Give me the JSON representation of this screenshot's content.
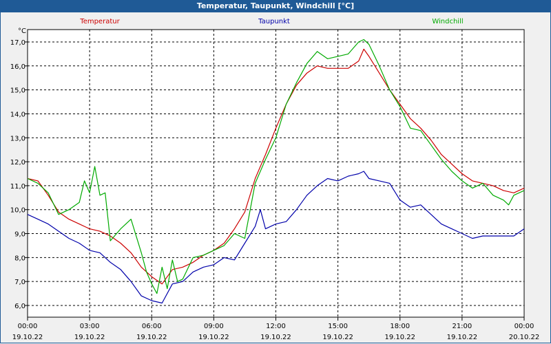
{
  "window": {
    "title": "Temperatur, Taupunkt, Windchill [°C]"
  },
  "chart_data": {
    "type": "line",
    "title": "Temperatur, Taupunkt, Windchill [°C]",
    "ylabel": "°C",
    "ylim": [
      5.5,
      17.5
    ],
    "xlim": [
      0,
      24
    ],
    "yticks": [
      6,
      7,
      8,
      9,
      10,
      11,
      12,
      13,
      14,
      15,
      16,
      17
    ],
    "ytick_labels": [
      "6,0",
      "7,0",
      "8,0",
      "9,0",
      "10,0",
      "11,0",
      "12,0",
      "13,0",
      "14,0",
      "15,0",
      "16,0",
      "17,0"
    ],
    "xticks": [
      0,
      3,
      6,
      9,
      12,
      15,
      18,
      21,
      24
    ],
    "xtick_labels": [
      {
        "time": "00:00",
        "date": "19.10.22"
      },
      {
        "time": "03:00",
        "date": "19.10.22"
      },
      {
        "time": "06:00",
        "date": "19.10.22"
      },
      {
        "time": "09:00",
        "date": "19.10.22"
      },
      {
        "time": "12:00",
        "date": "19.10.22"
      },
      {
        "time": "15:00",
        "date": "19.10.22"
      },
      {
        "time": "18:00",
        "date": "19.10.22"
      },
      {
        "time": "21:00",
        "date": "19.10.22"
      },
      {
        "time": "00:00",
        "date": "20.10.22"
      }
    ],
    "grid": true,
    "series": [
      {
        "name": "Temperatur",
        "color": "#cc0000",
        "x": [
          0,
          0.5,
          1,
          1.5,
          2,
          2.5,
          3,
          3.5,
          4,
          4.5,
          5,
          5.5,
          6,
          6.5,
          7,
          7.5,
          8,
          8.5,
          9,
          9.5,
          10,
          10.5,
          11,
          11.5,
          12,
          12.5,
          13,
          13.5,
          14,
          14.5,
          15,
          15.5,
          16,
          16.25,
          16.5,
          17,
          17.5,
          18,
          18.5,
          19,
          19.5,
          20,
          20.5,
          21,
          21.5,
          22,
          22.5,
          23,
          23.5,
          24
        ],
        "values": [
          11.3,
          11.2,
          10.6,
          9.9,
          9.6,
          9.4,
          9.2,
          9.1,
          8.9,
          8.6,
          8.2,
          7.6,
          7.2,
          6.9,
          7.5,
          7.6,
          7.8,
          8.1,
          8.3,
          8.6,
          9.2,
          9.9,
          11.3,
          12.3,
          13.4,
          14.4,
          15.2,
          15.7,
          16.0,
          15.9,
          15.9,
          15.9,
          16.2,
          16.7,
          16.4,
          15.7,
          15.0,
          14.4,
          13.8,
          13.4,
          12.9,
          12.3,
          11.9,
          11.5,
          11.2,
          11.1,
          11.0,
          10.8,
          10.7,
          10.9
        ]
      },
      {
        "name": "Taupunkt",
        "color": "#0000aa",
        "x": [
          0,
          0.5,
          1,
          1.5,
          2,
          2.5,
          3,
          3.5,
          4,
          4.5,
          5,
          5.5,
          6,
          6.5,
          7,
          7.5,
          8,
          8.5,
          9,
          9.5,
          10,
          10.5,
          11,
          11.25,
          11.5,
          12,
          12.5,
          13,
          13.5,
          14,
          14.5,
          15,
          15.5,
          16,
          16.25,
          16.5,
          17,
          17.5,
          18,
          18.5,
          19,
          19.5,
          20,
          20.5,
          21,
          21.5,
          22,
          22.5,
          23,
          23.5,
          24
        ],
        "values": [
          9.8,
          9.6,
          9.4,
          9.1,
          8.8,
          8.6,
          8.3,
          8.2,
          7.8,
          7.5,
          7.0,
          6.4,
          6.2,
          6.1,
          6.9,
          7.0,
          7.4,
          7.6,
          7.7,
          8.0,
          7.9,
          8.6,
          9.3,
          10.0,
          9.2,
          9.4,
          9.5,
          10.0,
          10.6,
          11.0,
          11.3,
          11.2,
          11.4,
          11.5,
          11.6,
          11.3,
          11.2,
          11.1,
          10.4,
          10.1,
          10.2,
          9.8,
          9.4,
          9.2,
          9.0,
          8.8,
          8.9,
          8.9,
          8.9,
          8.9,
          9.2
        ]
      },
      {
        "name": "Windchill",
        "color": "#00aa00",
        "x": [
          0,
          0.5,
          1,
          1.5,
          2,
          2.5,
          2.75,
          3,
          3.25,
          3.5,
          3.75,
          4,
          4.5,
          5,
          5.5,
          5.75,
          6,
          6.25,
          6.5,
          6.75,
          7,
          7.25,
          7.5,
          8,
          8.5,
          9,
          9.5,
          10,
          10.5,
          11,
          11.5,
          12,
          12.5,
          13,
          13.5,
          14,
          14.5,
          15,
          15.5,
          16,
          16.25,
          16.5,
          17,
          17.5,
          18,
          18.5,
          19,
          19.5,
          20,
          20.5,
          21,
          21.5,
          22,
          22.5,
          23,
          23.25,
          23.5,
          24
        ],
        "values": [
          11.3,
          11.1,
          10.7,
          9.8,
          10.0,
          10.3,
          11.2,
          10.7,
          11.8,
          10.6,
          10.7,
          8.7,
          9.2,
          9.6,
          8.2,
          7.4,
          6.9,
          6.5,
          7.6,
          6.7,
          7.9,
          7.0,
          7.1,
          8.0,
          8.1,
          8.3,
          8.5,
          9.0,
          8.8,
          11.1,
          12.1,
          13.0,
          14.4,
          15.3,
          16.1,
          16.6,
          16.3,
          16.4,
          16.5,
          17.0,
          17.1,
          16.9,
          16.0,
          15.0,
          14.3,
          13.4,
          13.3,
          12.7,
          12.1,
          11.6,
          11.2,
          10.9,
          11.1,
          10.6,
          10.4,
          10.2,
          10.6,
          10.8
        ]
      }
    ]
  }
}
